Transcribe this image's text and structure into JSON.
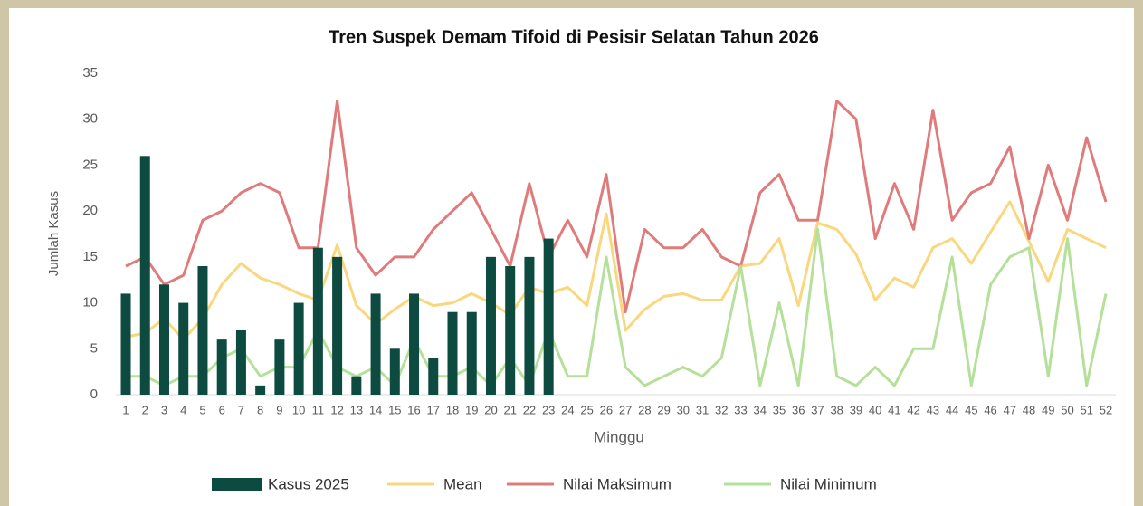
{
  "chart_data": {
    "type": "combo",
    "title": "Tren Suspek Demam Tifoid di Pesisir Selatan Tahun 2026",
    "x_label": "Minggu",
    "y_label": "Jumlah Kasus",
    "categories": [
      "1",
      "2",
      "3",
      "4",
      "5",
      "6",
      "7",
      "8",
      "9",
      "10",
      "11",
      "12",
      "13",
      "14",
      "15",
      "16",
      "17",
      "18",
      "19",
      "20",
      "21",
      "22",
      "23",
      "24",
      "25",
      "26",
      "27",
      "28",
      "29",
      "30",
      "31",
      "32",
      "33",
      "34",
      "35",
      "36",
      "37",
      "38",
      "39",
      "40",
      "41",
      "42",
      "43",
      "44",
      "45",
      "46",
      "47",
      "48",
      "49",
      "50",
      "51",
      "52"
    ],
    "series": [
      {
        "name": "Kasus 2025",
        "type": "bar",
        "color": "#0d4a40",
        "values": [
          11,
          26,
          12,
          10,
          14,
          6,
          7,
          1,
          6,
          10,
          16,
          15,
          2,
          11,
          5,
          11,
          4,
          9,
          9,
          15,
          14,
          15,
          17,
          null,
          null,
          null,
          null,
          null,
          null,
          null,
          null,
          null,
          null,
          null,
          null,
          null,
          null,
          null,
          null,
          null,
          null,
          null,
          null,
          null,
          null,
          null,
          null,
          null,
          null,
          null,
          null,
          null
        ]
      },
      {
        "name": "Mean",
        "type": "line",
        "color": "#f9d77e",
        "values": [
          6.3,
          6.7,
          8.3,
          6,
          8.3,
          12,
          14.3,
          12.7,
          12,
          11,
          10.3,
          16.3,
          9.7,
          7.7,
          9.3,
          10.7,
          9.7,
          10,
          11,
          10,
          8.7,
          11.7,
          11,
          11.7,
          9.7,
          19.7,
          7,
          9.3,
          10.7,
          11,
          10.3,
          10.3,
          14,
          14.3,
          17,
          9.7,
          18.7,
          18,
          15.3,
          10.3,
          12.7,
          11.7,
          16,
          17,
          14.3,
          17.7,
          21,
          16.7,
          12.3,
          18,
          17,
          16
        ]
      },
      {
        "name": "Nilai Maksimum",
        "type": "line",
        "color": "#e07b7b",
        "values": [
          14,
          15,
          12,
          13,
          19,
          20,
          22,
          23,
          22,
          16,
          16,
          32,
          16,
          13,
          15,
          15,
          18,
          20,
          22,
          18,
          14,
          23,
          15,
          19,
          15,
          24,
          9,
          18,
          16,
          16,
          18,
          15,
          14,
          22,
          24,
          19,
          19,
          32,
          30,
          17,
          23,
          18,
          31,
          19,
          22,
          23,
          27,
          17,
          25,
          19,
          28,
          21
        ]
      },
      {
        "name": "Nilai Minimum",
        "type": "line",
        "color": "#b5e09a",
        "values": [
          2,
          2,
          1,
          2,
          2,
          4,
          5,
          2,
          3,
          3,
          7,
          3,
          2,
          3,
          1,
          6,
          2,
          2,
          3,
          1,
          4,
          1,
          7,
          2,
          2,
          15,
          3,
          1,
          2,
          3,
          2,
          4,
          14,
          1,
          10,
          1,
          18,
          2,
          1,
          3,
          1,
          5,
          5,
          15,
          1,
          12,
          15,
          16,
          2,
          17,
          1,
          11
        ]
      }
    ],
    "ylim": [
      0,
      35
    ],
    "yticks": [
      0,
      5,
      10,
      15,
      20,
      25,
      30,
      35
    ],
    "grid": false
  }
}
